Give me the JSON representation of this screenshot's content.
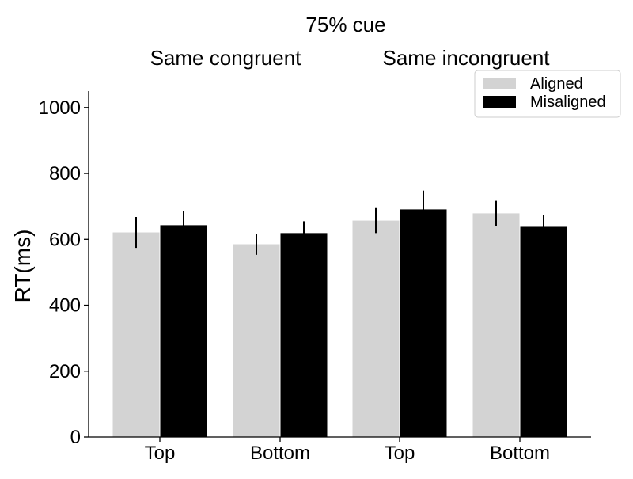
{
  "chart_data": {
    "type": "bar",
    "title": "75% cue",
    "group_labels": [
      "Same congruent",
      "Same incongruent"
    ],
    "categories": [
      "Top",
      "Bottom",
      "Top",
      "Bottom"
    ],
    "ylabel": "RT(ms)",
    "xlabel": "",
    "ylim": [
      0,
      1050
    ],
    "yticks": [
      0,
      200,
      400,
      600,
      800,
      1000
    ],
    "grid": false,
    "legend_position": "top-right",
    "series": [
      {
        "name": "Aligned",
        "color": "#d3d3d3",
        "values": [
          621,
          585,
          657,
          679
        ],
        "errors": [
          47,
          32,
          38,
          38
        ]
      },
      {
        "name": "Misaligned",
        "color": "#000000",
        "values": [
          643,
          619,
          691,
          638
        ],
        "errors": [
          43,
          36,
          57,
          36
        ]
      }
    ]
  }
}
